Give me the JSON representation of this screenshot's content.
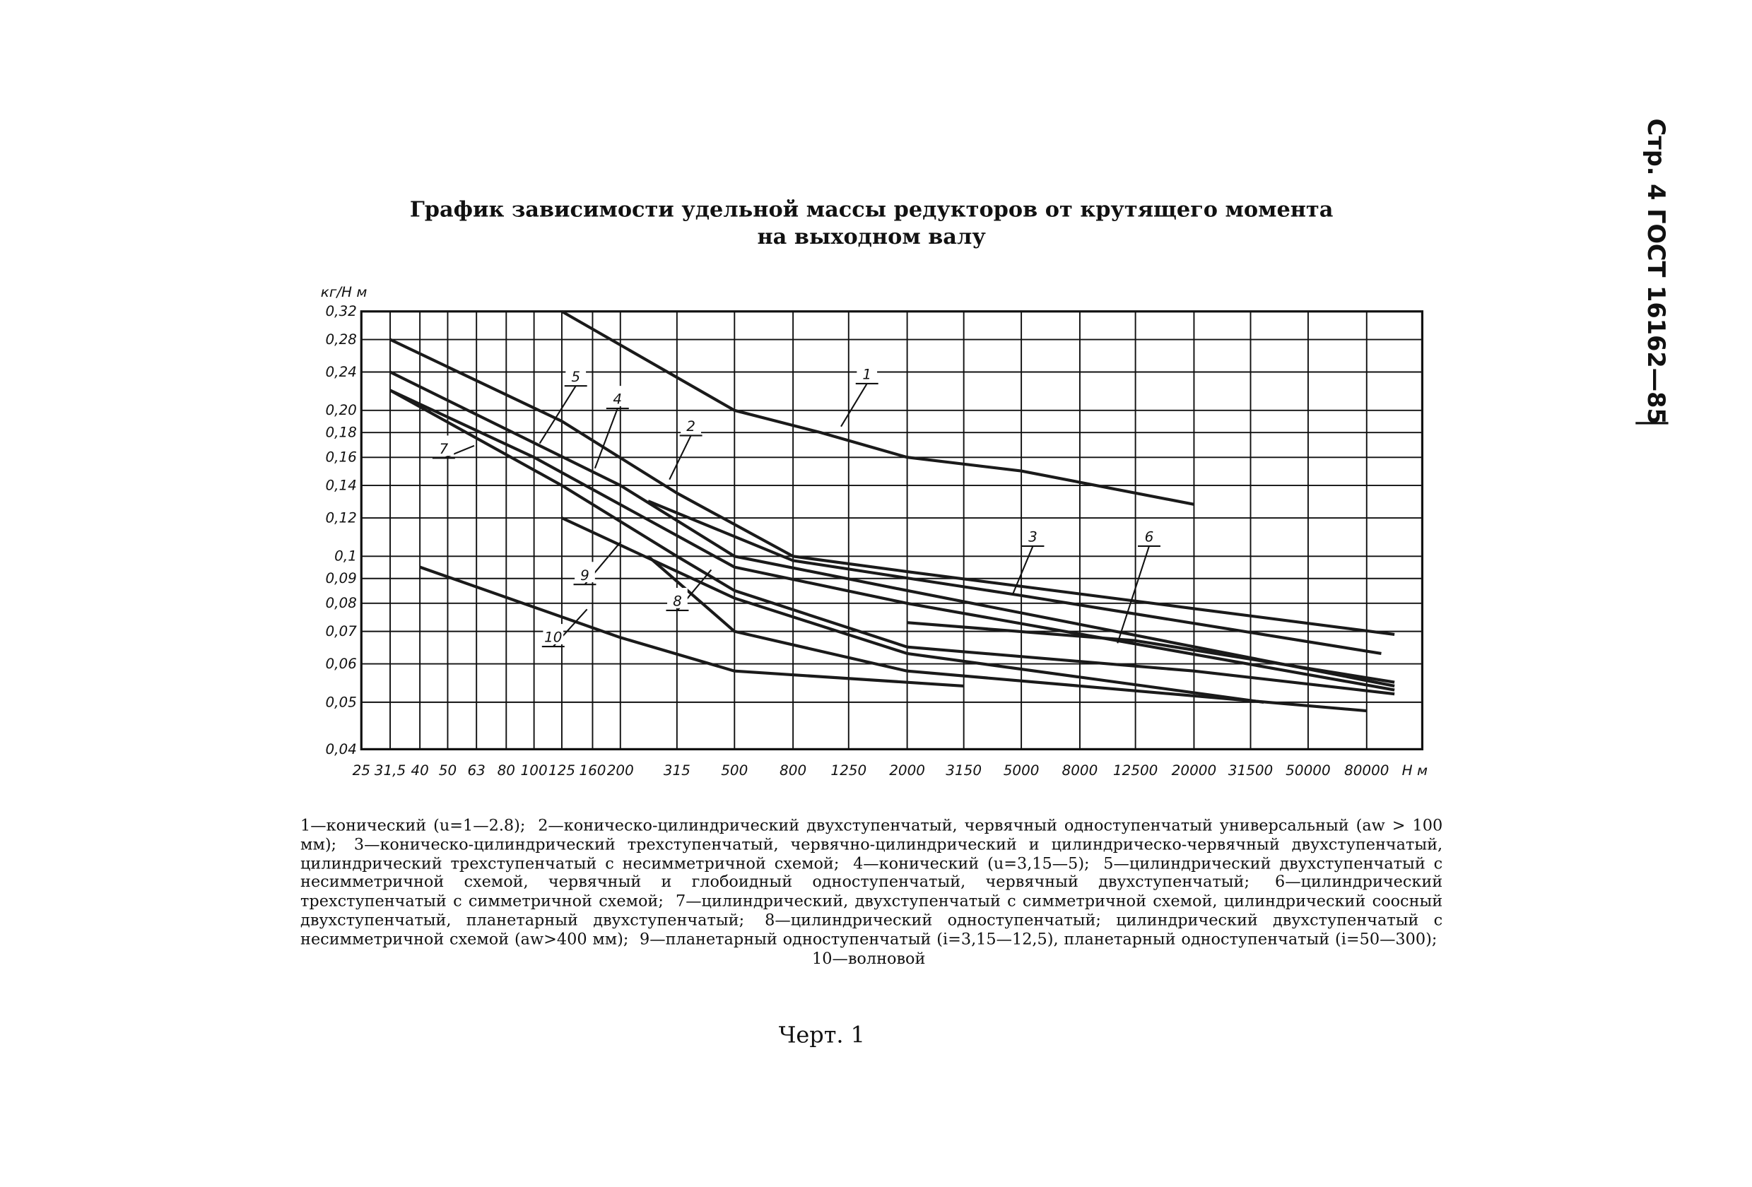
{
  "page_header": "Стр. 4 ГОСТ 16162—85",
  "chart_data": {
    "type": "line",
    "title": [
      "График зависимости удельной массы редукторов от крутящего момента",
      "на выходном валу"
    ],
    "x_label": "Н м",
    "y_label": "кг/Н м",
    "x_log": true,
    "y_log": true,
    "grid": true,
    "xlim": [
      25,
      125000
    ],
    "ylim": [
      0.04,
      0.32
    ],
    "xticks": [
      25,
      {
        "value": 31.5,
        "label": "31,5"
      },
      40,
      50,
      63,
      80,
      100,
      125,
      160,
      200,
      315,
      500,
      800,
      1250,
      2000,
      3150,
      5000,
      8000,
      12500,
      20000,
      31500,
      50000,
      80000
    ],
    "yticks": [
      {
        "value": 0.32,
        "label": "0,32"
      },
      {
        "value": 0.28,
        "label": "0,28"
      },
      {
        "value": 0.24,
        "label": "0,24"
      },
      {
        "value": 0.2,
        "label": "0,20"
      },
      {
        "value": 0.18,
        "label": "0,18"
      },
      {
        "value": 0.16,
        "label": "0,16"
      },
      {
        "value": 0.14,
        "label": "0,14"
      },
      {
        "value": 0.12,
        "label": "0,12"
      },
      {
        "value": 0.1,
        "label": "0,1"
      },
      {
        "value": 0.09,
        "label": "0,09"
      },
      {
        "value": 0.08,
        "label": "0,08"
      },
      {
        "value": 0.07,
        "label": "0,07"
      },
      {
        "value": 0.06,
        "label": "0,06"
      },
      {
        "value": 0.05,
        "label": "0,05"
      },
      {
        "value": 0.04,
        "label": "0,04"
      }
    ],
    "series": [
      {
        "name": "1",
        "color": "#1a1a1a",
        "x": [
          125,
          500,
          1000,
          2000,
          5000,
          20000
        ],
        "values": [
          0.32,
          0.2,
          0.18,
          0.16,
          0.15,
          0.128
        ]
      },
      {
        "name": "2",
        "color": "#1a1a1a",
        "x": [
          31.5,
          125,
          315,
          800,
          2000,
          20000,
          100000
        ],
        "values": [
          0.28,
          0.19,
          0.135,
          0.1,
          0.093,
          0.078,
          0.069
        ]
      },
      {
        "name": "3",
        "color": "#1a1a1a",
        "x": [
          250,
          800,
          5000,
          90000
        ],
        "values": [
          0.13,
          0.098,
          0.083,
          0.063
        ]
      },
      {
        "name": "4",
        "color": "#1a1a1a",
        "x": [
          31.5,
          200,
          500,
          2000,
          100000
        ],
        "values": [
          0.24,
          0.14,
          0.1,
          0.085,
          0.054
        ]
      },
      {
        "name": "5",
        "color": "#1a1a1a",
        "x": [
          31.5,
          100,
          500,
          2000,
          100000
        ],
        "values": [
          0.22,
          0.16,
          0.095,
          0.08,
          0.053
        ]
      },
      {
        "name": "6",
        "color": "#1a1a1a",
        "x": [
          2000,
          12500,
          100000
        ],
        "values": [
          0.073,
          0.067,
          0.055
        ]
      },
      {
        "name": "7",
        "color": "#1a1a1a",
        "x": [
          31.5,
          125,
          315,
          500,
          2000,
          20000,
          100000
        ],
        "values": [
          0.22,
          0.14,
          0.1,
          0.085,
          0.065,
          0.058,
          0.052
        ]
      },
      {
        "name": "8",
        "color": "#1a1a1a",
        "x": [
          250,
          500,
          2000,
          80000
        ],
        "values": [
          0.1,
          0.07,
          0.058,
          0.048
        ]
      },
      {
        "name": "9",
        "color": "#1a1a1a",
        "x": [
          125,
          500,
          2000,
          35000
        ],
        "values": [
          0.12,
          0.082,
          0.063,
          0.05
        ]
      },
      {
        "name": "10",
        "color": "#1a1a1a",
        "x": [
          40,
          200,
          500,
          3150
        ],
        "values": [
          0.095,
          0.068,
          0.058,
          0.054
        ]
      }
    ]
  },
  "caption_items": [
    "1—конический (u=1—2.8);",
    "2—коническо-цилиндрический двухступенчатый, червячный одноступенчатый универсальный (aw > 100 мм);",
    "3—коническо-цилиндрический трехступенчатый, червячно-цилиндрический и цилиндрическо-червячный двухступенчатый, цилиндрический трехступенчатый с несимметричной схемой;",
    "4—конический (u=3,15—5);",
    "5—цилиндрический двухступенчатый с несимметричной схемой, червячный и глобоидный одноступенчатый, червячный двухступенчатый;",
    "6—цилиндрический трехступенчатый с симметричной схемой;",
    "7—цилиндрический, двухступенчатый с симметричной схемой, цилиндрический соосный двухступенчатый, планетарный двухступенчатый;",
    "8—цилиндрический одноступенчатый; цилиндрический двухступенчатый с несимметричной схемой (aw>400 мм);",
    "9—планетарный одноступенчатый (i=3,15—12,5), планетарный одноступенчатый (i=50—300);",
    "10—волновой"
  ],
  "figure_label": "Черт. 1"
}
